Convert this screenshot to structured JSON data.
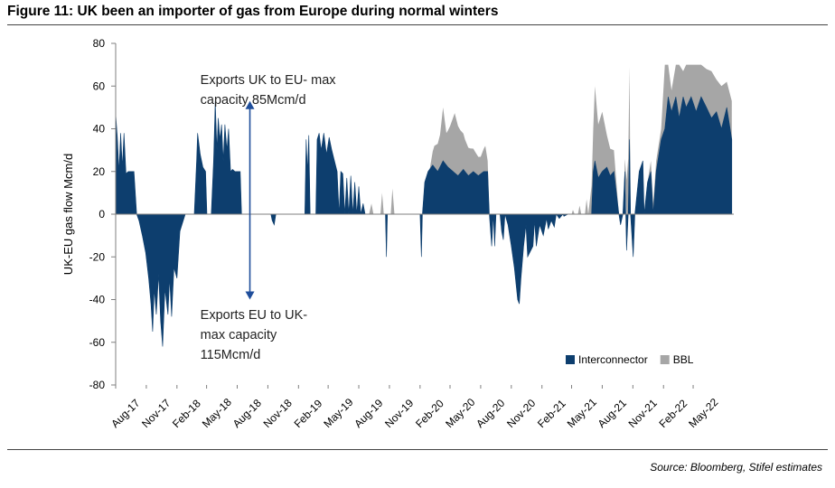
{
  "figure_title": "Figure 11: UK been an importer of gas from Europe during normal winters",
  "source_note": "Source: Bloomberg, Stifel estimates",
  "colors": {
    "interconnector": "#0d3e6e",
    "bbl": "#a6a6a6",
    "axis": "#7f7f7f",
    "arrow": "#1f4e9b"
  },
  "chart_data": {
    "type": "area",
    "stacked": true,
    "ylabel": "UK-EU gas flow Mcm/d",
    "xlabel": "",
    "ylim": [
      -80,
      80
    ],
    "yticks": [
      -80,
      -60,
      -40,
      -20,
      0,
      20,
      40,
      60,
      80
    ],
    "xlim": [
      "2017-08-01",
      "2022-08-31"
    ],
    "xtick_dates": [
      "2017-08-01",
      "2017-11-01",
      "2018-02-01",
      "2018-05-01",
      "2018-08-01",
      "2018-11-01",
      "2019-02-01",
      "2019-05-01",
      "2019-08-01",
      "2019-11-01",
      "2020-02-01",
      "2020-05-01",
      "2020-08-01",
      "2020-11-01",
      "2021-02-01",
      "2021-05-01",
      "2021-08-01",
      "2021-11-01",
      "2022-02-01",
      "2022-05-01"
    ],
    "xtick_labels": [
      "Aug-17",
      "Nov-17",
      "Feb-18",
      "May-18",
      "Aug-18",
      "Nov-18",
      "Feb-19",
      "May-19",
      "Aug-19",
      "Nov-19",
      "Feb-20",
      "May-20",
      "Aug-20",
      "Nov-20",
      "Feb-21",
      "May-21",
      "Aug-21",
      "Nov-21",
      "Feb-22",
      "May-22"
    ],
    "legend": {
      "position": "bottom-right",
      "entries": [
        "Interconnector",
        "BBL"
      ]
    },
    "annotations": [
      {
        "text_lines": [
          "Exports UK to EU- max",
          "capacity 85Mcm/d"
        ],
        "date": "2018-08-15",
        "y": 61
      },
      {
        "text_lines": [
          "Exports EU to UK-",
          "max capacity",
          "115Mcm/d"
        ],
        "date": "2018-08-15",
        "y": -49
      }
    ],
    "arrow": {
      "date": "2018-09-08",
      "y_from": 53,
      "y_to": -40
    },
    "series": [
      {
        "name": "Interconnector",
        "points": [
          [
            "2017-08-01",
            47
          ],
          [
            "2017-08-06",
            36
          ],
          [
            "2017-08-11",
            20
          ],
          [
            "2017-08-16",
            38
          ],
          [
            "2017-08-21",
            22
          ],
          [
            "2017-08-26",
            38
          ],
          [
            "2017-09-01",
            19
          ],
          [
            "2017-09-08",
            20
          ],
          [
            "2017-09-15",
            20
          ],
          [
            "2017-09-25",
            20
          ],
          [
            "2017-10-03",
            0
          ],
          [
            "2017-10-10",
            -3
          ],
          [
            "2017-10-20",
            -10
          ],
          [
            "2017-10-30",
            -18
          ],
          [
            "2017-11-08",
            -30
          ],
          [
            "2017-11-15",
            -42
          ],
          [
            "2017-11-20",
            -55
          ],
          [
            "2017-11-25",
            -35
          ],
          [
            "2017-12-01",
            -47
          ],
          [
            "2017-12-08",
            -28
          ],
          [
            "2017-12-14",
            -50
          ],
          [
            "2017-12-20",
            -62
          ],
          [
            "2017-12-27",
            -35
          ],
          [
            "2018-01-05",
            -47
          ],
          [
            "2018-01-10",
            -30
          ],
          [
            "2018-01-16",
            -48
          ],
          [
            "2018-01-23",
            -25
          ],
          [
            "2018-02-01",
            -30
          ],
          [
            "2018-02-10",
            -8
          ],
          [
            "2018-02-20",
            -3
          ],
          [
            "2018-02-26",
            0
          ],
          [
            "2018-03-05",
            0
          ],
          [
            "2018-03-25",
            0
          ],
          [
            "2018-04-01",
            25
          ],
          [
            "2018-04-04",
            38
          ],
          [
            "2018-04-12",
            28
          ],
          [
            "2018-04-20",
            22
          ],
          [
            "2018-04-28",
            20
          ],
          [
            "2018-05-02",
            0
          ],
          [
            "2018-05-15",
            0
          ],
          [
            "2018-05-22",
            25
          ],
          [
            "2018-05-27",
            53
          ],
          [
            "2018-06-01",
            30
          ],
          [
            "2018-06-05",
            45
          ],
          [
            "2018-06-10",
            35
          ],
          [
            "2018-06-15",
            42
          ],
          [
            "2018-06-20",
            25
          ],
          [
            "2018-06-25",
            42
          ],
          [
            "2018-07-01",
            30
          ],
          [
            "2018-07-06",
            40
          ],
          [
            "2018-07-12",
            20
          ],
          [
            "2018-07-18",
            21
          ],
          [
            "2018-07-25",
            20
          ],
          [
            "2018-08-10",
            20
          ],
          [
            "2018-08-14",
            0
          ],
          [
            "2018-11-10",
            0
          ],
          [
            "2018-11-14",
            -3
          ],
          [
            "2018-11-20",
            -5
          ],
          [
            "2018-11-25",
            0
          ],
          [
            "2019-02-20",
            0
          ],
          [
            "2019-02-24",
            35
          ],
          [
            "2019-02-28",
            20
          ],
          [
            "2019-03-04",
            37
          ],
          [
            "2019-03-08",
            0
          ],
          [
            "2019-03-25",
            0
          ],
          [
            "2019-03-29",
            35
          ],
          [
            "2019-04-04",
            38
          ],
          [
            "2019-04-10",
            30
          ],
          [
            "2019-04-18",
            38
          ],
          [
            "2019-04-26",
            28
          ],
          [
            "2019-05-04",
            36
          ],
          [
            "2019-05-12",
            30
          ],
          [
            "2019-05-20",
            25
          ],
          [
            "2019-05-28",
            20
          ],
          [
            "2019-06-03",
            0
          ],
          [
            "2019-06-08",
            20
          ],
          [
            "2019-06-14",
            19
          ],
          [
            "2019-06-20",
            0
          ],
          [
            "2019-06-26",
            17
          ],
          [
            "2019-07-02",
            0
          ],
          [
            "2019-07-08",
            18
          ],
          [
            "2019-07-14",
            0
          ],
          [
            "2019-07-20",
            15
          ],
          [
            "2019-07-26",
            0
          ],
          [
            "2019-08-01",
            13
          ],
          [
            "2019-08-07",
            0
          ],
          [
            "2019-08-14",
            5
          ],
          [
            "2019-08-20",
            0
          ],
          [
            "2019-10-20",
            0
          ],
          [
            "2019-10-23",
            -20
          ],
          [
            "2019-10-26",
            0
          ],
          [
            "2020-02-01",
            0
          ],
          [
            "2020-02-05",
            -20
          ],
          [
            "2020-02-08",
            0
          ],
          [
            "2020-02-15",
            15
          ],
          [
            "2020-02-25",
            20
          ],
          [
            "2020-03-10",
            23
          ],
          [
            "2020-03-25",
            20
          ],
          [
            "2020-04-10",
            25
          ],
          [
            "2020-04-25",
            22
          ],
          [
            "2020-05-10",
            20
          ],
          [
            "2020-05-25",
            18
          ],
          [
            "2020-06-10",
            21
          ],
          [
            "2020-06-25",
            18
          ],
          [
            "2020-07-10",
            20
          ],
          [
            "2020-07-25",
            18
          ],
          [
            "2020-08-10",
            20
          ],
          [
            "2020-08-22",
            20
          ],
          [
            "2020-08-27",
            0
          ],
          [
            "2020-09-03",
            -15
          ],
          [
            "2020-09-08",
            0
          ],
          [
            "2020-09-12",
            -15
          ],
          [
            "2020-09-16",
            0
          ],
          [
            "2020-09-28",
            0
          ],
          [
            "2020-10-03",
            -8
          ],
          [
            "2020-10-08",
            -12
          ],
          [
            "2020-10-13",
            0
          ],
          [
            "2020-10-22",
            -5
          ],
          [
            "2020-11-01",
            -15
          ],
          [
            "2020-11-10",
            -25
          ],
          [
            "2020-11-20",
            -40
          ],
          [
            "2020-11-25",
            -42
          ],
          [
            "2020-11-30",
            -30
          ],
          [
            "2020-12-08",
            -15
          ],
          [
            "2020-12-15",
            -5
          ],
          [
            "2020-12-20",
            -20
          ],
          [
            "2021-01-05",
            -15
          ],
          [
            "2021-01-10",
            -3
          ],
          [
            "2021-01-15",
            -15
          ],
          [
            "2021-01-25",
            -5
          ],
          [
            "2021-02-05",
            -10
          ],
          [
            "2021-02-15",
            -2
          ],
          [
            "2021-02-20",
            -7
          ],
          [
            "2021-03-01",
            -3
          ],
          [
            "2021-03-10",
            -6
          ],
          [
            "2021-03-16",
            0
          ],
          [
            "2021-03-25",
            -2
          ],
          [
            "2021-04-05",
            0
          ],
          [
            "2021-04-08",
            -1
          ],
          [
            "2021-04-20",
            0
          ],
          [
            "2021-06-30",
            0
          ],
          [
            "2021-07-05",
            20
          ],
          [
            "2021-07-10",
            25
          ],
          [
            "2021-07-20",
            17
          ],
          [
            "2021-08-01",
            20
          ],
          [
            "2021-08-15",
            22
          ],
          [
            "2021-08-25",
            18
          ],
          [
            "2021-09-05",
            20
          ],
          [
            "2021-09-20",
            0
          ],
          [
            "2021-09-25",
            -5
          ],
          [
            "2021-10-02",
            0
          ],
          [
            "2021-10-08",
            20
          ],
          [
            "2021-10-13",
            -17
          ],
          [
            "2021-10-18",
            0
          ],
          [
            "2021-10-22",
            35
          ],
          [
            "2021-10-25",
            0
          ],
          [
            "2021-11-02",
            -20
          ],
          [
            "2021-11-07",
            0
          ],
          [
            "2021-11-20",
            20
          ],
          [
            "2021-12-01",
            25
          ],
          [
            "2021-12-05",
            0
          ],
          [
            "2021-12-15",
            15
          ],
          [
            "2021-12-25",
            20
          ],
          [
            "2022-01-01",
            0
          ],
          [
            "2022-01-10",
            20
          ],
          [
            "2022-01-25",
            35
          ],
          [
            "2022-02-05",
            40
          ],
          [
            "2022-02-15",
            55
          ],
          [
            "2022-02-25",
            48
          ],
          [
            "2022-03-10",
            55
          ],
          [
            "2022-03-20",
            45
          ],
          [
            "2022-04-01",
            55
          ],
          [
            "2022-04-10",
            50
          ],
          [
            "2022-04-25",
            55
          ],
          [
            "2022-05-10",
            48
          ],
          [
            "2022-05-25",
            55
          ],
          [
            "2022-06-10",
            50
          ],
          [
            "2022-06-25",
            45
          ],
          [
            "2022-07-10",
            48
          ],
          [
            "2022-07-25",
            40
          ],
          [
            "2022-08-10",
            50
          ],
          [
            "2022-08-25",
            35
          ]
        ]
      },
      {
        "name": "BBL",
        "points": [
          [
            "2017-08-01",
            0
          ],
          [
            "2019-09-01",
            0
          ],
          [
            "2019-09-08",
            5
          ],
          [
            "2019-09-14",
            0
          ],
          [
            "2019-10-05",
            0
          ],
          [
            "2019-10-10",
            10
          ],
          [
            "2019-10-15",
            0
          ],
          [
            "2019-11-05",
            0
          ],
          [
            "2019-11-10",
            12
          ],
          [
            "2019-11-16",
            0
          ],
          [
            "2020-03-01",
            0
          ],
          [
            "2020-03-15",
            10
          ],
          [
            "2020-04-01",
            15
          ],
          [
            "2020-04-10",
            25
          ],
          [
            "2020-04-20",
            15
          ],
          [
            "2020-05-01",
            20
          ],
          [
            "2020-05-15",
            28
          ],
          [
            "2020-06-01",
            20
          ],
          [
            "2020-06-15",
            15
          ],
          [
            "2020-07-01",
            12
          ],
          [
            "2020-07-15",
            10
          ],
          [
            "2020-08-01",
            8
          ],
          [
            "2020-08-15",
            12
          ],
          [
            "2020-08-27",
            0
          ],
          [
            "2021-05-01",
            0
          ],
          [
            "2021-05-05",
            2
          ],
          [
            "2021-05-10",
            0
          ],
          [
            "2021-05-20",
            0
          ],
          [
            "2021-05-25",
            4
          ],
          [
            "2021-05-30",
            0
          ],
          [
            "2021-06-10",
            0
          ],
          [
            "2021-06-15",
            7
          ],
          [
            "2021-06-20",
            0
          ],
          [
            "2021-07-05",
            20
          ],
          [
            "2021-07-10",
            35
          ],
          [
            "2021-07-20",
            25
          ],
          [
            "2021-08-01",
            28
          ],
          [
            "2021-08-15",
            15
          ],
          [
            "2021-09-05",
            10
          ],
          [
            "2021-09-20",
            0
          ],
          [
            "2021-10-05",
            0
          ],
          [
            "2021-10-22",
            34
          ],
          [
            "2021-10-25",
            0
          ],
          [
            "2021-12-15",
            0
          ],
          [
            "2021-12-25",
            5
          ],
          [
            "2022-01-25",
            5
          ],
          [
            "2022-02-05",
            30
          ],
          [
            "2022-02-15",
            15
          ],
          [
            "2022-02-25",
            10
          ],
          [
            "2022-03-10",
            15
          ],
          [
            "2022-03-20",
            25
          ],
          [
            "2022-04-01",
            12
          ],
          [
            "2022-04-10",
            20
          ],
          [
            "2022-04-25",
            15
          ],
          [
            "2022-05-10",
            22
          ],
          [
            "2022-05-25",
            15
          ],
          [
            "2022-06-10",
            18
          ],
          [
            "2022-06-25",
            22
          ],
          [
            "2022-07-10",
            15
          ],
          [
            "2022-07-25",
            20
          ],
          [
            "2022-08-10",
            12
          ],
          [
            "2022-08-25",
            18
          ]
        ]
      }
    ]
  }
}
